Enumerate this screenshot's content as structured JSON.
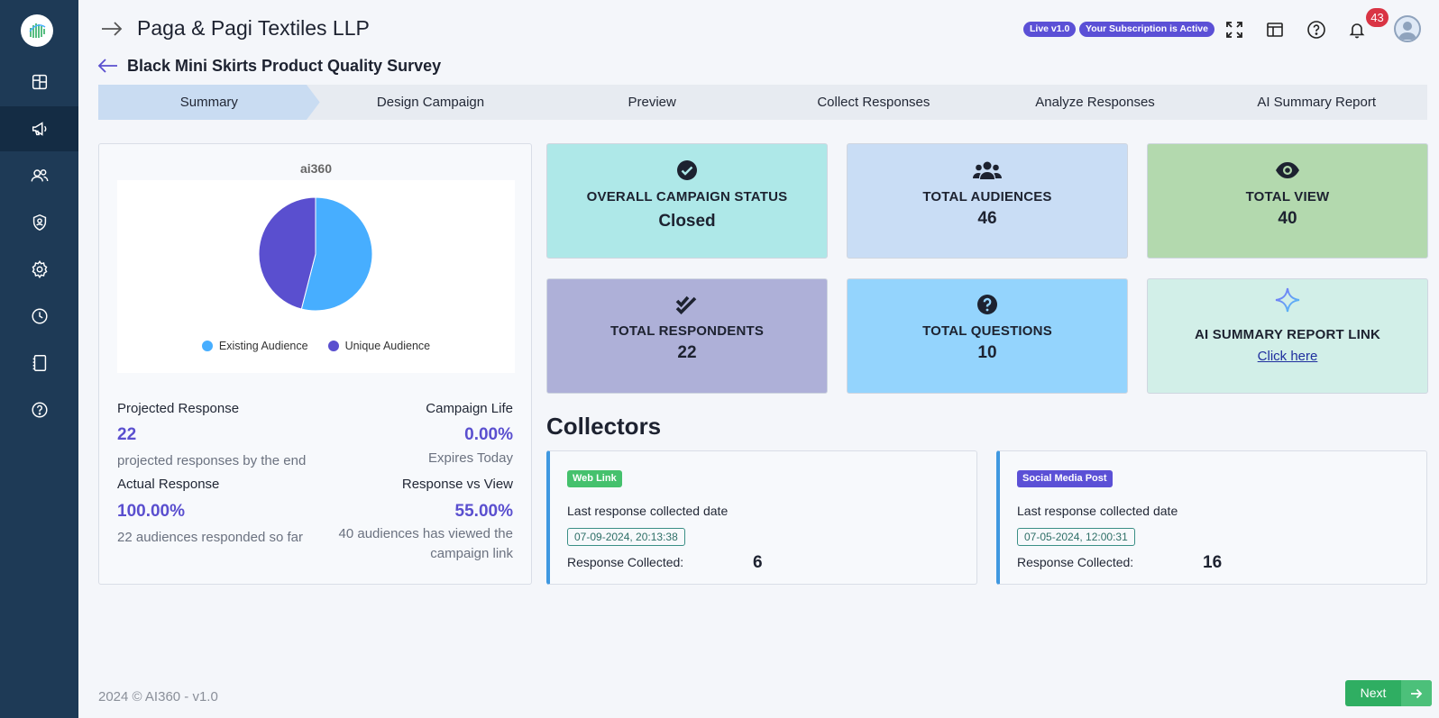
{
  "header": {
    "company": "Paga & Pagi Textiles LLP",
    "survey_title": "Black Mini Skirts Product Quality Survey",
    "version_badge": "Live v1.0",
    "subscription_badge": "Your Subscription is Active",
    "notification_count": "43"
  },
  "sidebar": {
    "items": [
      {
        "icon": "dashboard-icon"
      },
      {
        "icon": "megaphone-icon",
        "active": true
      },
      {
        "icon": "users-icon"
      },
      {
        "icon": "shield-user-icon"
      },
      {
        "icon": "gear-icon"
      },
      {
        "icon": "clock-icon"
      },
      {
        "icon": "document-icon"
      },
      {
        "icon": "help-icon"
      }
    ]
  },
  "steps": [
    {
      "label": "Summary",
      "active": true
    },
    {
      "label": "Design Campaign"
    },
    {
      "label": "Preview"
    },
    {
      "label": "Collect Responses"
    },
    {
      "label": "Analyze Responses"
    },
    {
      "label": "AI Summary Report"
    }
  ],
  "chart_data": {
    "type": "pie",
    "title": "ai360",
    "series": [
      {
        "name": "Existing Audience",
        "value": 54,
        "color": "#47aeff"
      },
      {
        "name": "Unique Audience",
        "value": 46,
        "color": "#5a4fcf"
      }
    ],
    "legend": "bottom"
  },
  "metrics": {
    "projected_label": "Projected Response",
    "projected_value": "22",
    "projected_sub": "projected responses by the end",
    "life_label": "Campaign Life",
    "life_value": "0.00%",
    "life_sub": "Expires Today",
    "actual_label": "Actual Response",
    "actual_value": "100.00%",
    "actual_sub": "22 audiences responded so far",
    "rvv_label": "Response vs View",
    "rvv_value": "55.00%",
    "rvv_sub": "40 audiences has viewed the campaign link"
  },
  "tiles": {
    "status_label": "OVERALL CAMPAIGN STATUS",
    "status_value": "Closed",
    "audiences_label": "TOTAL AUDIENCES",
    "audiences_value": "46",
    "view_label": "TOTAL VIEW",
    "view_value": "40",
    "respondents_label": "TOTAL RESPONDENTS",
    "respondents_value": "22",
    "questions_label": "TOTAL QUESTIONS",
    "questions_value": "10",
    "ai_label": "AI SUMMARY REPORT LINK",
    "ai_link": "Click here",
    "colors": {
      "status": "#aee8e8",
      "audiences": "#c9ddf5",
      "view": "#b3d9ae",
      "respondents": "#aeb0d8",
      "questions": "#94d4fd",
      "ai": "#d2efe8"
    }
  },
  "collectors": {
    "title": "Collectors",
    "items": [
      {
        "tag": "Web Link",
        "tag_color": "#45c16d",
        "last_label": "Last response collected date",
        "date": "07-09-2024, 20:13:38",
        "count_label": "Response Collected:",
        "count": "6"
      },
      {
        "tag": "Social Media Post",
        "tag_color": "#5b50d6",
        "last_label": "Last response collected date",
        "date": "07-05-2024, 12:00:31",
        "count_label": "Response Collected:",
        "count": "16"
      }
    ]
  },
  "footer": {
    "copyright": "2024 © AI360 - v1.0",
    "next_label": "Next"
  }
}
